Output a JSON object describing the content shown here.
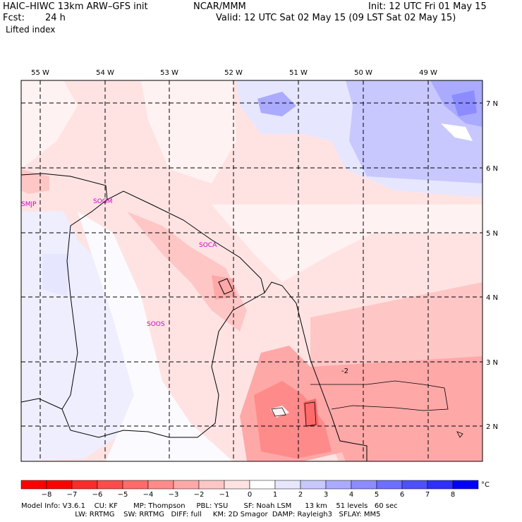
{
  "header": {
    "model": "HAIC–HIWC 13km ARW–GFS init",
    "org": "NCAR/MMM",
    "init": "Init: 12 UTC Fri 01 May 15",
    "fcst_label": "Fcst:",
    "fcst_value": "24 h",
    "valid": "Valid: 12 UTC Sat 02 May 15 (09 LST Sat 02 May 15)",
    "field": "Lifted index"
  },
  "axes": {
    "lon_labels": [
      "55 W",
      "54 W",
      "53 W",
      "52 W",
      "51 W",
      "50 W",
      "49 W"
    ],
    "lat_labels": [
      "7 N",
      "6 N",
      "5 N",
      "4 N",
      "3 N",
      "2 N"
    ]
  },
  "stations": [
    "SMJP",
    "SOGM",
    "SOCA",
    "SOOS"
  ],
  "contour_labels": [
    "-2"
  ],
  "colorbar": {
    "ticks": [
      "−8",
      "−7",
      "−6",
      "−5",
      "−4",
      "−3",
      "−2",
      "−1",
      "0",
      "1",
      "2",
      "3",
      "4",
      "5",
      "6",
      "7",
      "8"
    ],
    "unit": "°C",
    "colors": [
      "#ff0000",
      "#ff2a2a",
      "#ff4b4b",
      "#ff6a6a",
      "#ff8a8a",
      "#ffa8a8",
      "#ffc6c6",
      "#ffe3e3",
      "#ffffff",
      "#e6e6ff",
      "#c8c8ff",
      "#aaaaff",
      "#8c8cff",
      "#6e6eff",
      "#4f4fff",
      "#2f2fff",
      "#0000ff"
    ]
  },
  "footer": {
    "line1": "Model Info: V3.6.1    CU: KF       MP: Thompson     PBL: YSU       SF: Noah LSM      13 km    51 levels   60 sec",
    "line2": "                        LW: RRTMG    SW: RRTMG   DIFF: full     KM: 2D Smagor  DAMP: Rayleigh3   SFLAY: MM5"
  }
}
